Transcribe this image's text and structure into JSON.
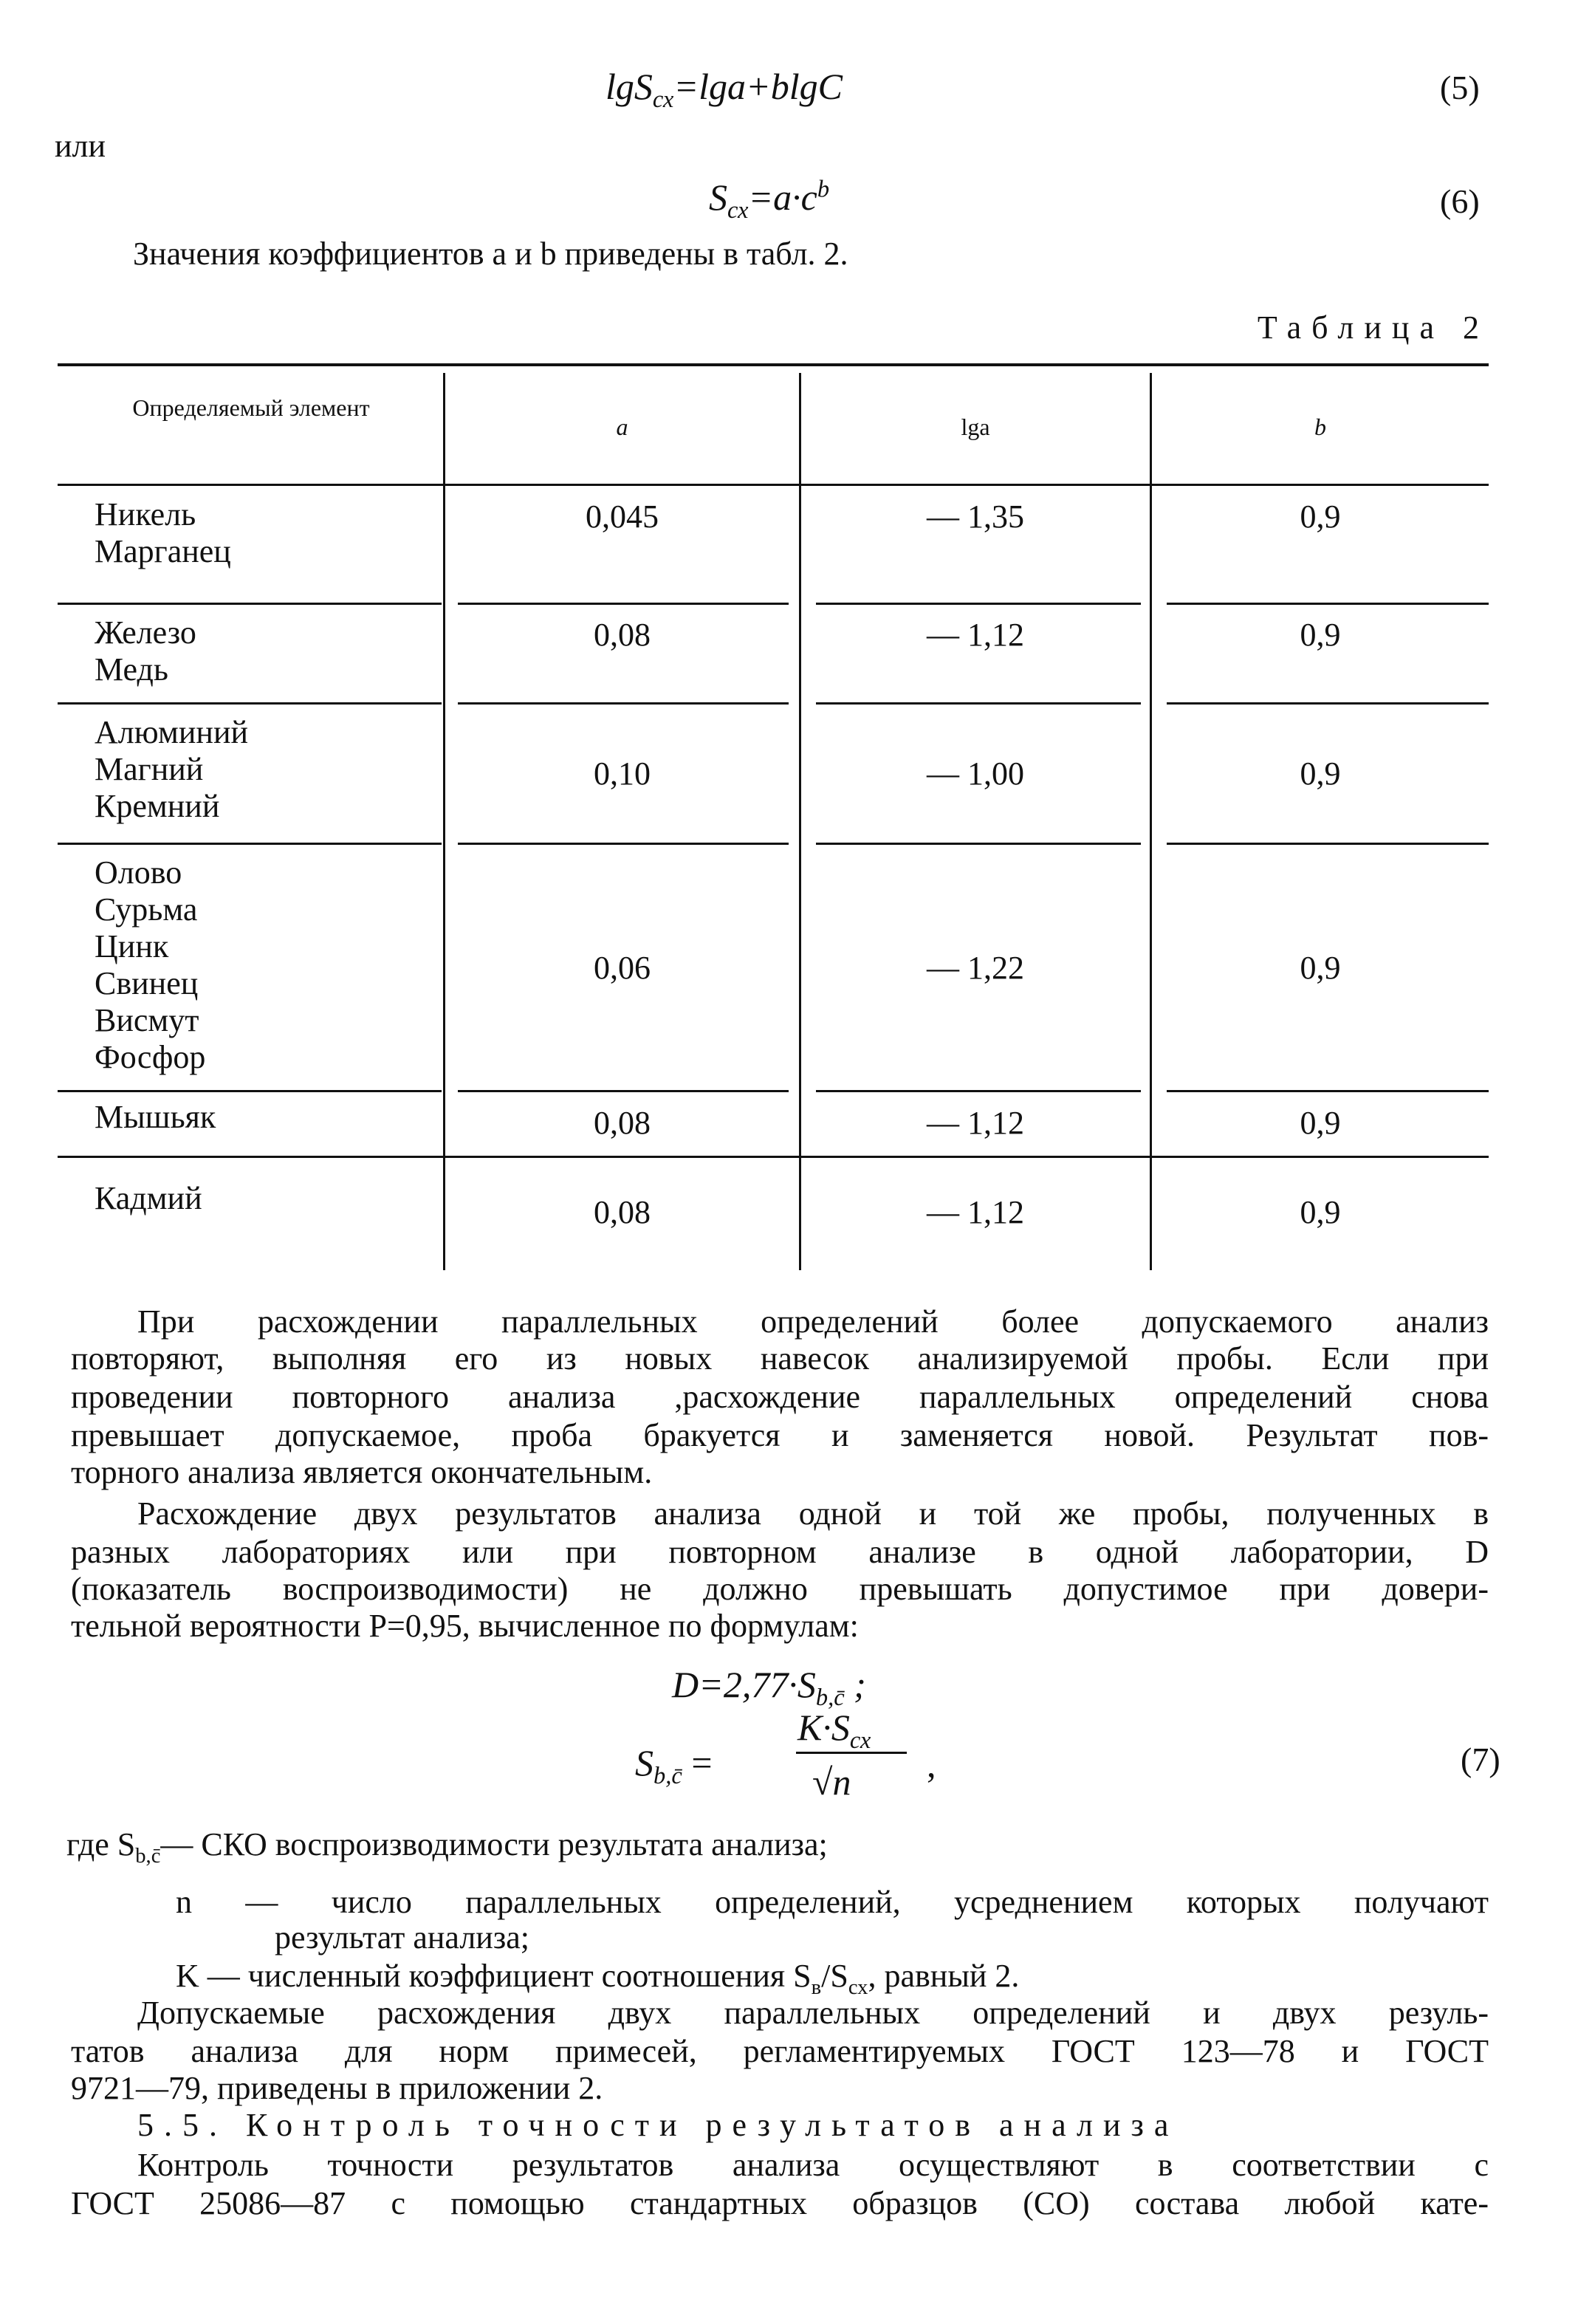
{
  "equations": {
    "eq5": {
      "text": "lgS",
      "sub": "сх",
      "rest": "=lga+blgC",
      "number": "(5)"
    },
    "or": "или",
    "eq6": {
      "text": "S",
      "sub": "сх",
      "rest": "=a·c",
      "sup": "b",
      "number": "(6)"
    },
    "intro": "Значения коэффициентов a и b приведены в табл. 2."
  },
  "table": {
    "caption": "Таблица 2",
    "headers": [
      "Определяемый элемент",
      "a",
      "lga",
      "b"
    ],
    "rows": [
      {
        "elements": "Никель\nМарганец",
        "a": "0,045",
        "lga": "— 1,35",
        "b": "0,9"
      },
      {
        "elements": "Железо\nМедь",
        "a": "0,08",
        "lga": "— 1,12",
        "b": "0,9"
      },
      {
        "elements": "Алюминий\nМагний\nКремний",
        "a": "0,10",
        "lga": "— 1,00",
        "b": "0,9"
      },
      {
        "elements": "Олово\nСурьма\nЦинк\nСвинец\nВисмут\nФосфор",
        "a": "0,06",
        "lga": "— 1,22",
        "b": "0,9"
      },
      {
        "elements": "Мышьяк",
        "a": "0,08",
        "lga": "— 1,12",
        "b": "0,9"
      },
      {
        "elements": "Кадмий",
        "a": "0,08",
        "lga": "— 1,12",
        "b": "0,9"
      }
    ]
  },
  "para1": [
    "При расхождении параллельных определений более допускаемого анализ",
    "повторяют, выполняя его из новых навесок анализируемой пробы. Если при",
    "проведении повторного анализа ,расхождение параллельных определений снова",
    "превышает допускаемое, проба бракуется и заменяется новой. Результат пов-",
    "торного анализа является окончательным."
  ],
  "para2": [
    "Расхождение двух результатов анализа одной и той же пробы, полученных в",
    "разных лабораториях или при повторном анализе в одной лаборатории, D",
    "(показатель воспроизводимости) не должно превышать допустимое при довери-",
    "тельной вероятности P=0,95, вычисленное по формулам:"
  ],
  "formula7": {
    "line1": "D=2,77·S",
    "line1_sub": "b,c̄",
    "line1_end": ";",
    "lhs": "S",
    "lhs_sub": "b,c̄",
    "eq": "=",
    "numerator": "K·S",
    "numerator_sub": "сх",
    "denominator": "√n",
    "comma": ",",
    "number": "(7)"
  },
  "where": {
    "line1": "где S",
    "line1_sub": "b,c̄",
    "line1_rest": "— СКО воспроизводимости результата анализа;",
    "n_line": "n  — число параллельных определений, усреднением которых  получают",
    "n_cont": "результат анализа;",
    "k_line": "K  — численный коэффициент соотношения S",
    "k_sub1": "в",
    "k_mid": "/S",
    "k_sub2": "сх",
    "k_end": ", равный 2."
  },
  "para3": [
    "Допускаемые расхождения двух параллельных определений и двух резуль-",
    "татов анализа для норм примесей, регламентируемых ГОСТ 123—78 и ГОСТ",
    "9721—79, приведены в приложении 2."
  ],
  "section": "5.5. Контроль точности результатов анализа",
  "para4": [
    "Контроль точности результатов анализа осуществляют в соответствии с",
    "ГОСТ 25086—87 с помощью стандартных образцов (СО) состава любой кате-"
  ]
}
